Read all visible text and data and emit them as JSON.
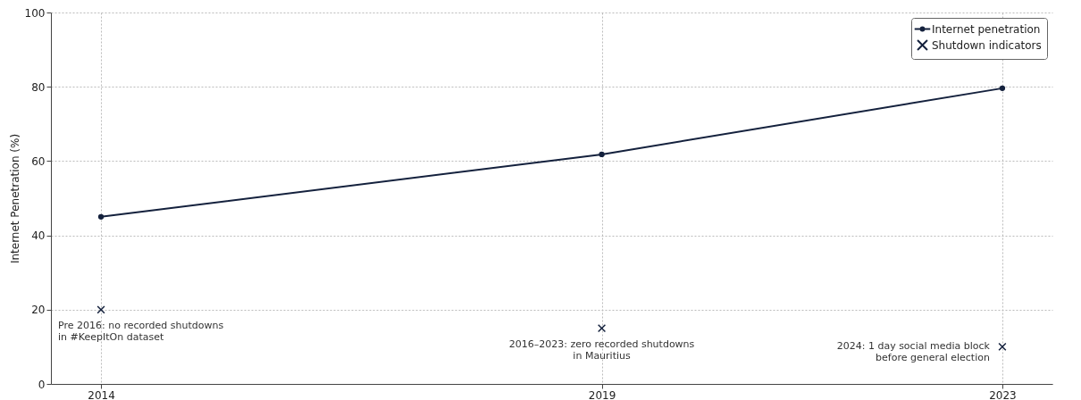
{
  "chart_data": {
    "type": "line",
    "ylabel": "Internet Penetration (%)",
    "x": [
      2014,
      2019,
      2023
    ],
    "xlim": [
      2013.5,
      2023.5
    ],
    "xticks": [
      2014,
      2019,
      2023
    ],
    "ylim": [
      0,
      100
    ],
    "yticks": [
      0,
      20,
      40,
      60,
      80,
      100
    ],
    "grid": true,
    "legend": "top right",
    "series": [
      {
        "name": "Internet penetration",
        "marker": "circle",
        "color": "#14213d",
        "values": [
          45,
          61.8,
          79.6
        ]
      },
      {
        "name": "Shutdown indicators",
        "type": "scatter",
        "marker": "cross",
        "color": "#14213d",
        "values": [
          20,
          15,
          10
        ]
      }
    ],
    "annotations": [
      {
        "text": "Pre 2016: no recorded shutdowns\nin #KeepItOn dataset",
        "x": 2014,
        "y": 20
      },
      {
        "text": "2016–2023: zero recorded shutdowns\nin Mauritius",
        "x": 2019,
        "y": 15
      },
      {
        "text": "2024: 1 day social media block\nbefore general election",
        "x": 2023,
        "y": 10
      }
    ]
  }
}
